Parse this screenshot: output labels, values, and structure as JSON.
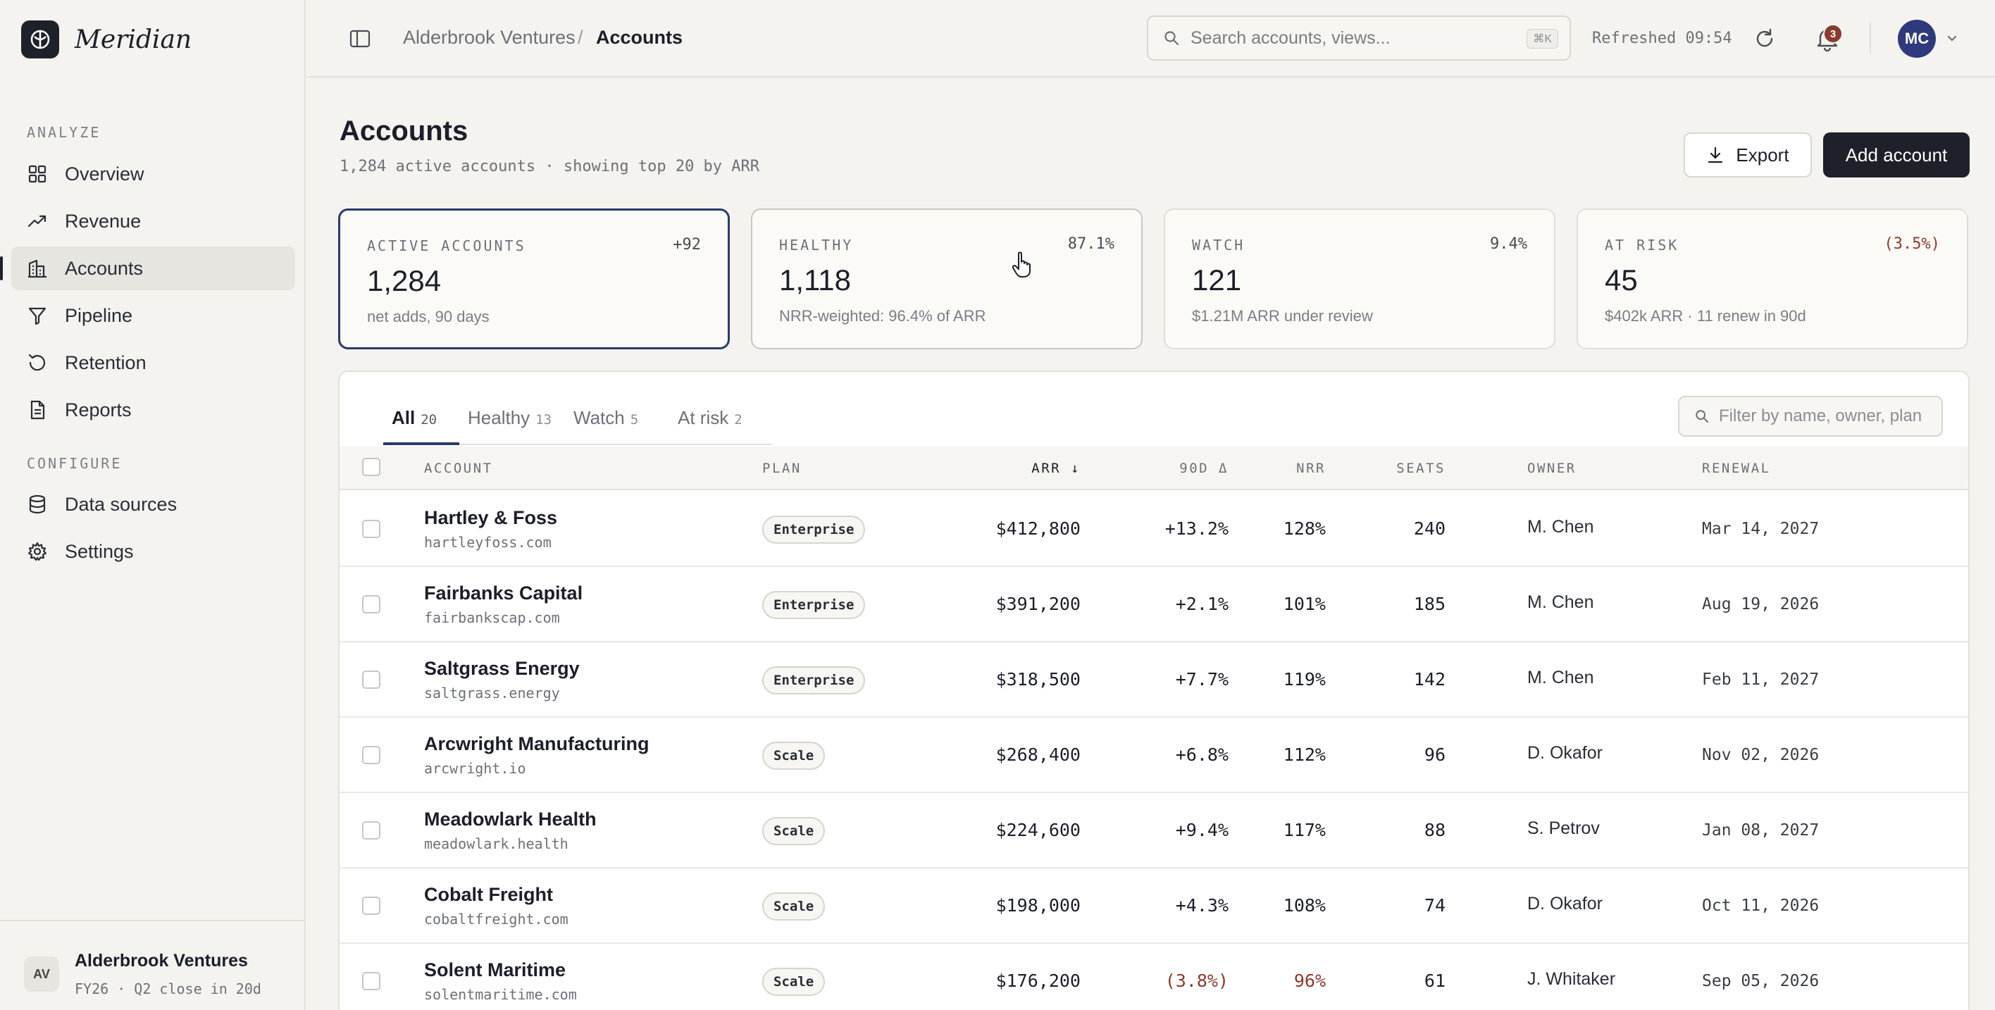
{
  "brand": {
    "name": "Meridian"
  },
  "sidebar": {
    "sections": [
      {
        "label": "ANALYZE"
      },
      {
        "label": "CONFIGURE"
      }
    ],
    "items": [
      {
        "label": "Overview",
        "icon": "grid-icon"
      },
      {
        "label": "Revenue",
        "icon": "trend-up-icon"
      },
      {
        "label": "Accounts",
        "icon": "building-icon",
        "active": true
      },
      {
        "label": "Pipeline",
        "icon": "funnel-icon"
      },
      {
        "label": "Retention",
        "icon": "history-icon"
      },
      {
        "label": "Reports",
        "icon": "document-icon"
      },
      {
        "label": "Data sources",
        "icon": "database-icon"
      },
      {
        "label": "Settings",
        "icon": "gear-icon"
      }
    ],
    "workspace": {
      "initials": "AV",
      "name": "Alderbrook Ventures",
      "sub": "FY26 · Q2 close in 20d"
    }
  },
  "topbar": {
    "breadcrumb": [
      "Alderbrook Ventures",
      "/",
      "Accounts"
    ],
    "search": {
      "placeholder": "Search accounts, views...",
      "shortcut": "⌘K"
    },
    "refreshed": "Refreshed 09:54",
    "notifications": "3",
    "user_initials": "MC"
  },
  "page": {
    "title": "Accounts",
    "subtitle": "1,284 active accounts · showing top 20 by ARR",
    "export_label": "Export",
    "add_label": "Add account"
  },
  "kpis": [
    {
      "label": "ACTIVE ACCOUNTS",
      "delta": "+92",
      "value": "1,284",
      "note": "net adds, 90 days"
    },
    {
      "label": "HEALTHY",
      "delta": "87.1%",
      "value": "1,118",
      "note": "NRR-weighted: 96.4% of ARR"
    },
    {
      "label": "WATCH",
      "delta": "9.4%",
      "value": "121",
      "note": "$1.21M ARR under review"
    },
    {
      "label": "AT RISK",
      "delta": "(3.5%)",
      "value": "45",
      "note": "$402k ARR · 11 renew in 90d"
    }
  ],
  "tabs": [
    {
      "label": "All",
      "count": "20"
    },
    {
      "label": "Healthy",
      "count": "13"
    },
    {
      "label": "Watch",
      "count": "5"
    },
    {
      "label": "At risk",
      "count": "2"
    }
  ],
  "filter": {
    "placeholder": "Filter by name, owner, plan"
  },
  "table": {
    "columns": [
      "ACCOUNT",
      "PLAN",
      "ARR ↓",
      "90D Δ",
      "NRR",
      "SEATS",
      "OWNER",
      "RENEWAL"
    ],
    "rows": [
      {
        "name": "Hartley & Foss",
        "domain": "hartleyfoss.com",
        "plan": "Enterprise",
        "arr": "$412,800",
        "delta": "+13.2%",
        "nrr": "128%",
        "seats": "240",
        "owner": "M. Chen",
        "renewal": "Mar 14, 2027"
      },
      {
        "name": "Fairbanks Capital",
        "domain": "fairbankscap.com",
        "plan": "Enterprise",
        "arr": "$391,200",
        "delta": "+2.1%",
        "nrr": "101%",
        "seats": "185",
        "owner": "M. Chen",
        "renewal": "Aug 19, 2026"
      },
      {
        "name": "Saltgrass Energy",
        "domain": "saltgrass.energy",
        "plan": "Enterprise",
        "arr": "$318,500",
        "delta": "+7.7%",
        "nrr": "119%",
        "seats": "142",
        "owner": "M. Chen",
        "renewal": "Feb 11, 2027"
      },
      {
        "name": "Arcwright Manufacturing",
        "domain": "arcwright.io",
        "plan": "Scale",
        "arr": "$268,400",
        "delta": "+6.8%",
        "nrr": "112%",
        "seats": "96",
        "owner": "D. Okafor",
        "renewal": "Nov 02, 2026"
      },
      {
        "name": "Meadowlark Health",
        "domain": "meadowlark.health",
        "plan": "Scale",
        "arr": "$224,600",
        "delta": "+9.4%",
        "nrr": "117%",
        "seats": "88",
        "owner": "S. Petrov",
        "renewal": "Jan 08, 2027"
      },
      {
        "name": "Cobalt Freight",
        "domain": "cobaltfreight.com",
        "plan": "Scale",
        "arr": "$198,000",
        "delta": "+4.3%",
        "nrr": "108%",
        "seats": "74",
        "owner": "D. Okafor",
        "renewal": "Oct 11, 2026"
      },
      {
        "name": "Solent Maritime",
        "domain": "solentmaritime.com",
        "plan": "Scale",
        "arr": "$176,200",
        "delta": "(3.8%)",
        "nrr": "96%",
        "seats": "61",
        "owner": "J. Whitaker",
        "renewal": "Sep 05, 2026",
        "negative": true
      }
    ]
  }
}
